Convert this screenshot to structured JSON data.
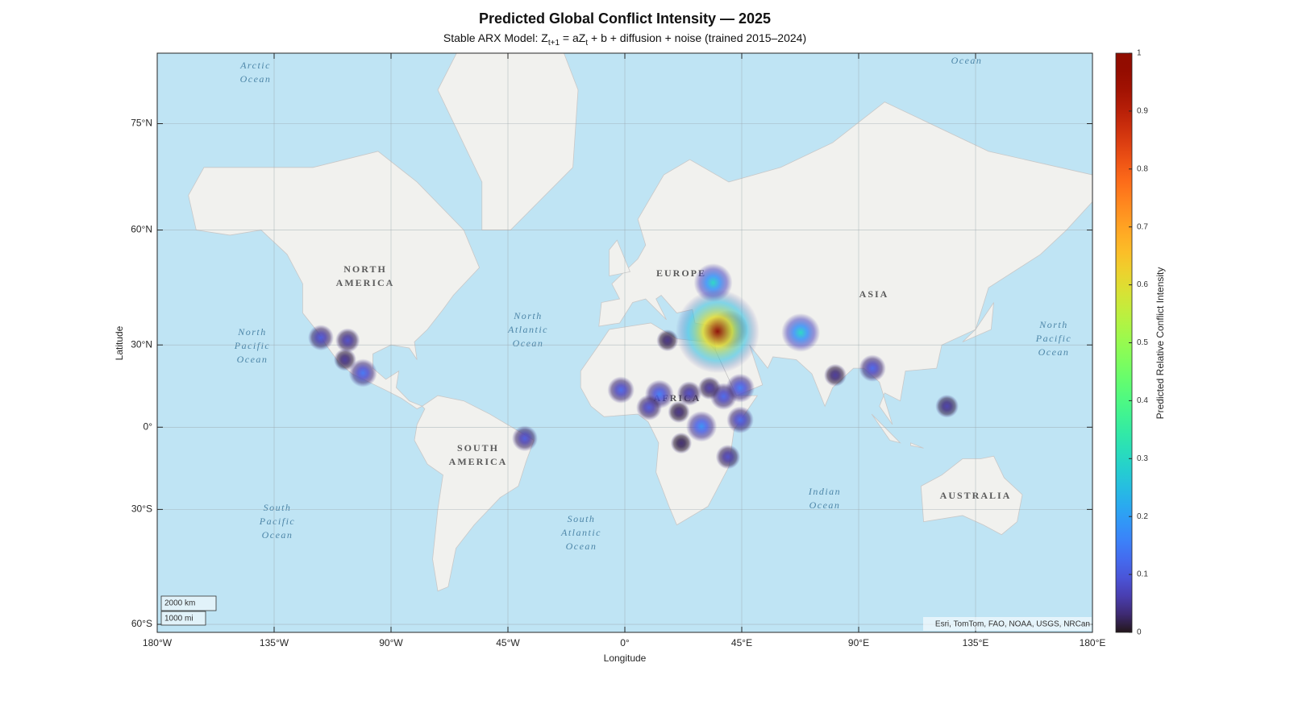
{
  "chart_data": {
    "type": "map",
    "projection": "mercator",
    "title": "Predicted Global Conflict Intensity — 2025",
    "subtitle_parts": [
      "Stable ARX Model: Z",
      "t+1",
      " = aZ",
      "t",
      " + b + diffusion + noise (trained 2015–2024)"
    ],
    "xlabel": "Longitude",
    "ylabel": "Latitude",
    "xlim": [
      -180,
      180
    ],
    "ylim": [
      -61.5,
      80.6
    ],
    "xticks": [
      {
        "value": -180,
        "label": "180°W"
      },
      {
        "value": -135,
        "label": "135°W"
      },
      {
        "value": -90,
        "label": "90°W"
      },
      {
        "value": -45,
        "label": "45°W"
      },
      {
        "value": 0,
        "label": "0°"
      },
      {
        "value": 45,
        "label": "45°E"
      },
      {
        "value": 90,
        "label": "90°E"
      },
      {
        "value": 135,
        "label": "135°E"
      },
      {
        "value": 180,
        "label": "180°E"
      }
    ],
    "yticks": [
      {
        "value": -60,
        "label": "60°S"
      },
      {
        "value": -30,
        "label": "30°S"
      },
      {
        "value": 0,
        "label": "0°"
      },
      {
        "value": 30,
        "label": "30°N"
      },
      {
        "value": 60,
        "label": "60°N"
      },
      {
        "value": 75,
        "label": "75°N"
      }
    ],
    "grid": true,
    "colormap": "turbo",
    "colorbar_label": "Predicted Relative Conflict Intensity",
    "clim": [
      0,
      1
    ],
    "cticks": [
      0,
      0.1,
      0.2,
      0.3,
      0.4,
      0.5,
      0.6,
      0.7,
      0.8,
      0.9,
      1
    ],
    "hotspots": [
      {
        "lon": 34,
        "lat": 48.3,
        "intensity": 0.3
      },
      {
        "lon": 40,
        "lat": 35,
        "intensity": 0.3
      },
      {
        "lon": 35.7,
        "lat": 34.4,
        "intensity": 1
      },
      {
        "lon": 67.7,
        "lat": 34,
        "intensity": 0.3
      },
      {
        "lon": 95.3,
        "lat": 22,
        "intensity": 0.12
      },
      {
        "lon": 124,
        "lat": 8,
        "intensity": 0.06
      },
      {
        "lon": 81,
        "lat": 19.5,
        "intensity": 0.05
      },
      {
        "lon": -117,
        "lat": 32.4,
        "intensity": 0.1
      },
      {
        "lon": -106.7,
        "lat": 31.5,
        "intensity": 0.08
      },
      {
        "lon": -107.7,
        "lat": 25,
        "intensity": 0.05
      },
      {
        "lon": -100.8,
        "lat": 20.3,
        "intensity": 0.14
      },
      {
        "lon": -38.5,
        "lat": -4.3,
        "intensity": 0.1
      },
      {
        "lon": -1.5,
        "lat": 14.1,
        "intensity": 0.12
      },
      {
        "lon": 13.3,
        "lat": 12.5,
        "intensity": 0.15
      },
      {
        "lon": 9.3,
        "lat": 7.5,
        "intensity": 0.1
      },
      {
        "lon": 24.8,
        "lat": 12.8,
        "intensity": 0.08
      },
      {
        "lon": 32.6,
        "lat": 14.8,
        "intensity": 0.06
      },
      {
        "lon": 38,
        "lat": 11.7,
        "intensity": 0.12
      },
      {
        "lon": 44.4,
        "lat": 14.8,
        "intensity": 0.15
      },
      {
        "lon": 29.5,
        "lat": 0.3,
        "intensity": 0.18
      },
      {
        "lon": 44.4,
        "lat": 2.8,
        "intensity": 0.12
      },
      {
        "lon": 39.7,
        "lat": -11.3,
        "intensity": 0.08
      },
      {
        "lon": 16.4,
        "lat": 31.5,
        "intensity": 0.04
      },
      {
        "lon": 20.8,
        "lat": 5.8,
        "intensity": 0.04
      },
      {
        "lon": 21.7,
        "lat": -6.1,
        "intensity": 0.03
      }
    ],
    "map_labels": [
      [
        "Arctic",
        "Ocean"
      ],
      [
        "North",
        "Pacific",
        "Ocean"
      ],
      [
        "NORTH",
        "AMERICA"
      ],
      [
        "North",
        "Atlantic",
        "Ocean"
      ],
      [
        "EUROPE"
      ],
      [
        "AFRICA"
      ],
      [
        "ASIA"
      ],
      [
        "North",
        "Pacific",
        "Ocean"
      ],
      [
        "Indian",
        "Ocean"
      ],
      [
        "SOUTH",
        "AMERICA"
      ],
      [
        "South",
        "Pacific",
        "Ocean"
      ],
      [
        "South",
        "Atlantic",
        "Ocean"
      ],
      [
        "AUSTRALIA"
      ],
      [
        "Ocean"
      ]
    ],
    "scale_bar": [
      "2000 km",
      "1000 mi"
    ],
    "attribution": "Esri, TomTom, FAO, NOAA, USGS, NRCan"
  }
}
